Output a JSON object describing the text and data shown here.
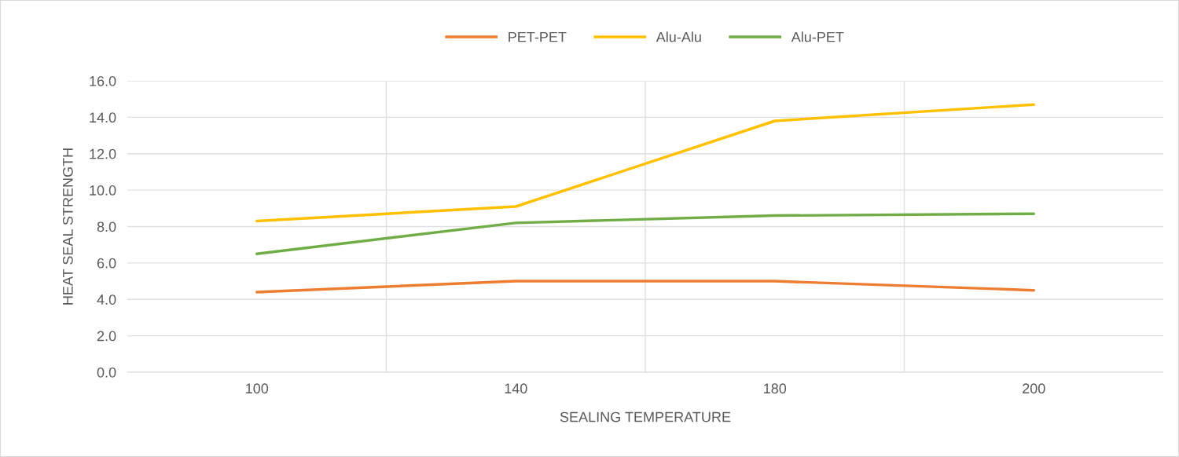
{
  "chart_data": {
    "type": "line",
    "xlabel": "SEALING TEMPERATURE",
    "ylabel": "HEAT SEAL STRENGTH",
    "categories": [
      "100",
      "140",
      "180",
      "200"
    ],
    "series": [
      {
        "name": "PET-PET",
        "color": "#ed7d31",
        "values": [
          4.4,
          5.0,
          5.0,
          4.5
        ]
      },
      {
        "name": "Alu-Alu",
        "color": "#ffc000",
        "values": [
          8.3,
          9.1,
          13.8,
          14.7
        ]
      },
      {
        "name": "Alu-PET",
        "color": "#70ad47",
        "values": [
          6.5,
          8.2,
          8.6,
          8.7
        ]
      }
    ],
    "ylim": [
      0,
      16
    ],
    "yticks": [
      {
        "value": 0,
        "label": "0.0"
      },
      {
        "value": 2,
        "label": "2.0"
      },
      {
        "value": 4,
        "label": "4.0"
      },
      {
        "value": 6,
        "label": "6.0"
      },
      {
        "value": 8,
        "label": "8.0"
      },
      {
        "value": 10,
        "label": "10.0"
      },
      {
        "value": 12,
        "label": "12.0"
      },
      {
        "value": 14,
        "label": "14.0"
      },
      {
        "value": 16,
        "label": "16.0"
      }
    ],
    "grid": true,
    "legend": "top",
    "marker": "none",
    "line_style": "solid"
  }
}
